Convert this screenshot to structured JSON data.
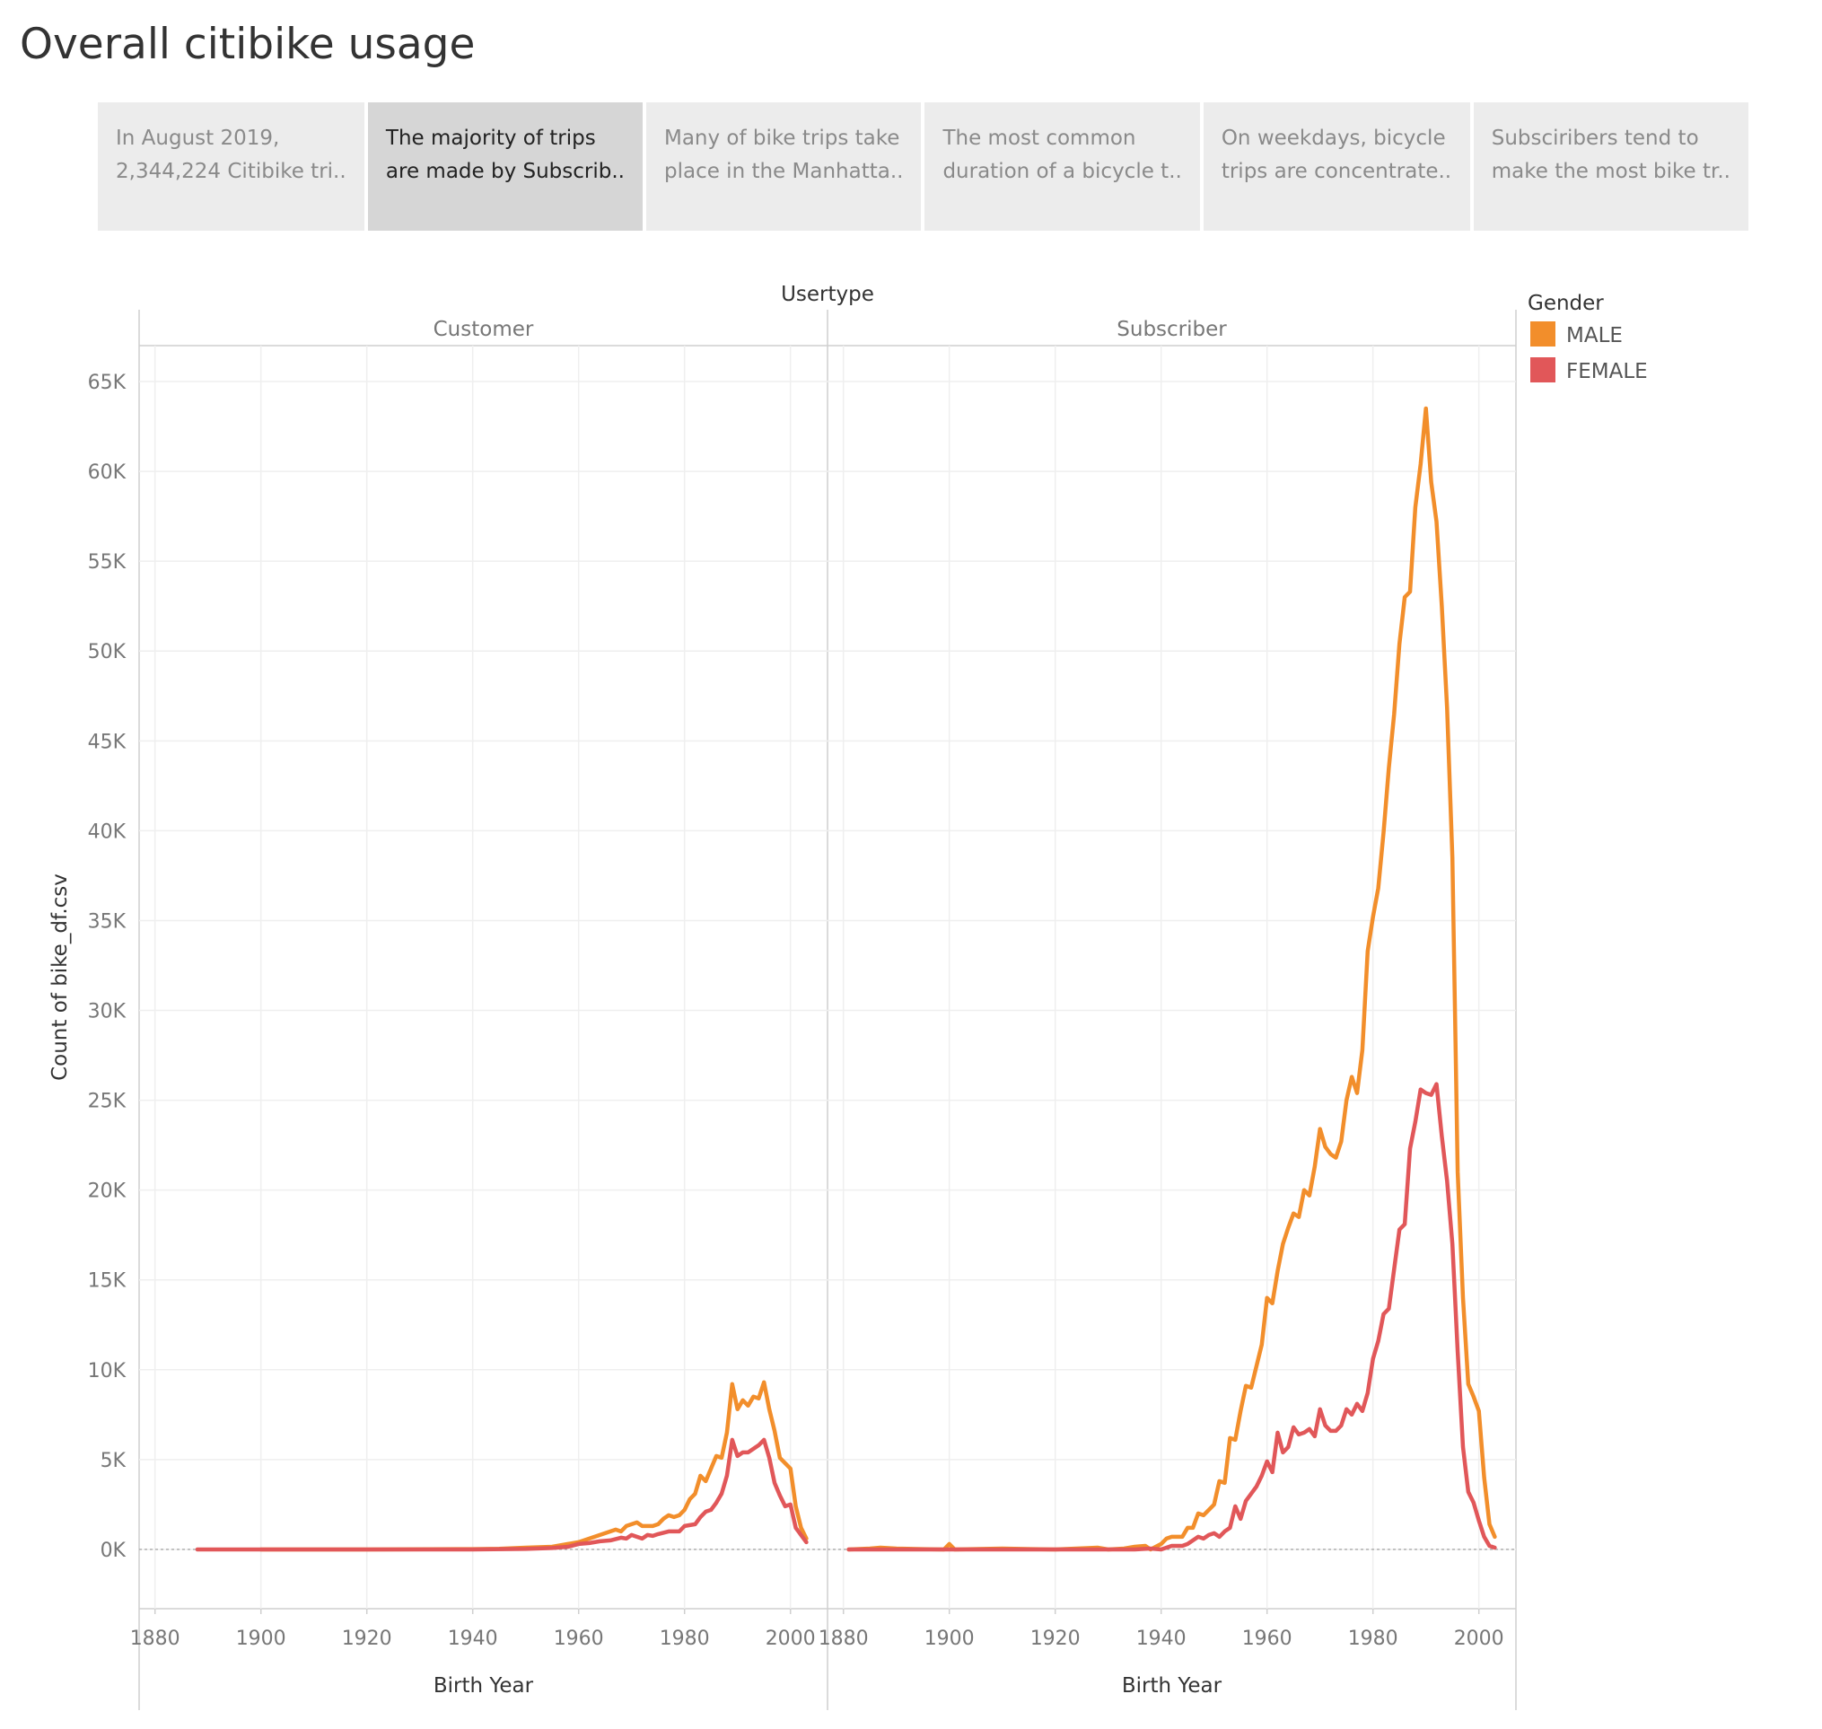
{
  "page": {
    "title": "Overall citibike usage"
  },
  "story_points": [
    {
      "line1": "In August 2019,",
      "line2": "2,344,224 Citibike tri..",
      "active": false
    },
    {
      "line1": "The majority of trips",
      "line2": "are made by Subscrib..",
      "active": true
    },
    {
      "line1": "Many of bike trips take",
      "line2": "place in the Manhatta..",
      "active": false
    },
    {
      "line1": "The most common",
      "line2": "duration of a bicycle t..",
      "active": false
    },
    {
      "line1": "On weekdays, bicycle",
      "line2": "trips are concentrate..",
      "active": false
    },
    {
      "line1": "Subsciribers tend to",
      "line2": "make the most bike tr..",
      "active": false
    }
  ],
  "chart_data": {
    "type": "line",
    "column_header_title": "Usertype",
    "panels": [
      "Customer",
      "Subscriber"
    ],
    "xlabel": "Birth Year",
    "ylabel": "Count of bike_df.csv",
    "xlim": [
      1877,
      2007
    ],
    "ylim": [
      -3300,
      67000
    ],
    "x_ticks": [
      1880,
      1900,
      1920,
      1940,
      1960,
      1980,
      2000
    ],
    "y_ticks": [
      0,
      5000,
      10000,
      15000,
      20000,
      25000,
      30000,
      35000,
      40000,
      45000,
      50000,
      55000,
      60000,
      65000
    ],
    "y_tick_labels": [
      "0K",
      "5K",
      "10K",
      "15K",
      "20K",
      "25K",
      "30K",
      "35K",
      "40K",
      "45K",
      "50K",
      "55K",
      "60K",
      "65K"
    ],
    "grid": true,
    "legend": {
      "title": "Gender",
      "position": "top-right"
    },
    "series": [
      {
        "name": "MALE",
        "color": "#f28e2b",
        "panel": "Customer",
        "points": [
          [
            1900,
            0
          ],
          [
            1920,
            0
          ],
          [
            1940,
            20
          ],
          [
            1945,
            40
          ],
          [
            1950,
            100
          ],
          [
            1955,
            150
          ],
          [
            1958,
            300
          ],
          [
            1960,
            400
          ],
          [
            1963,
            700
          ],
          [
            1965,
            900
          ],
          [
            1967,
            1100
          ],
          [
            1968,
            1000
          ],
          [
            1969,
            1300
          ],
          [
            1971,
            1500
          ],
          [
            1972,
            1300
          ],
          [
            1974,
            1300
          ],
          [
            1975,
            1400
          ],
          [
            1976,
            1700
          ],
          [
            1977,
            1900
          ],
          [
            1978,
            1800
          ],
          [
            1979,
            1900
          ],
          [
            1980,
            2200
          ],
          [
            1981,
            2800
          ],
          [
            1982,
            3100
          ],
          [
            1983,
            4100
          ],
          [
            1984,
            3800
          ],
          [
            1985,
            4500
          ],
          [
            1986,
            5200
          ],
          [
            1987,
            5100
          ],
          [
            1988,
            6500
          ],
          [
            1989,
            9200
          ],
          [
            1990,
            7800
          ],
          [
            1991,
            8300
          ],
          [
            1992,
            8000
          ],
          [
            1993,
            8500
          ],
          [
            1994,
            8400
          ],
          [
            1995,
            9300
          ],
          [
            1996,
            7800
          ],
          [
            1997,
            6600
          ],
          [
            1998,
            5100
          ],
          [
            1999,
            4800
          ],
          [
            2000,
            4500
          ],
          [
            2001,
            2400
          ],
          [
            2002,
            1200
          ],
          [
            2003,
            600
          ]
        ]
      },
      {
        "name": "FEMALE",
        "color": "#e15759",
        "panel": "Customer",
        "points": [
          [
            1888,
            0
          ],
          [
            1900,
            0
          ],
          [
            1920,
            0
          ],
          [
            1940,
            0
          ],
          [
            1950,
            30
          ],
          [
            1955,
            80
          ],
          [
            1958,
            150
          ],
          [
            1960,
            300
          ],
          [
            1962,
            350
          ],
          [
            1964,
            450
          ],
          [
            1966,
            500
          ],
          [
            1968,
            650
          ],
          [
            1969,
            600
          ],
          [
            1970,
            800
          ],
          [
            1971,
            700
          ],
          [
            1972,
            600
          ],
          [
            1973,
            800
          ],
          [
            1974,
            750
          ],
          [
            1975,
            850
          ],
          [
            1977,
            1000
          ],
          [
            1979,
            1000
          ],
          [
            1980,
            1300
          ],
          [
            1982,
            1400
          ],
          [
            1983,
            1800
          ],
          [
            1984,
            2100
          ],
          [
            1985,
            2200
          ],
          [
            1986,
            2600
          ],
          [
            1987,
            3100
          ],
          [
            1988,
            4100
          ],
          [
            1989,
            6100
          ],
          [
            1990,
            5200
          ],
          [
            1991,
            5400
          ],
          [
            1992,
            5400
          ],
          [
            1993,
            5600
          ],
          [
            1994,
            5800
          ],
          [
            1995,
            6100
          ],
          [
            1996,
            5100
          ],
          [
            1997,
            3700
          ],
          [
            1998,
            3000
          ],
          [
            1999,
            2400
          ],
          [
            2000,
            2500
          ],
          [
            2001,
            1200
          ],
          [
            2002,
            800
          ],
          [
            2003,
            400
          ]
        ]
      },
      {
        "name": "MALE",
        "color": "#f28e2b",
        "panel": "Subscriber",
        "points": [
          [
            1881,
            0
          ],
          [
            1885,
            50
          ],
          [
            1887,
            100
          ],
          [
            1890,
            50
          ],
          [
            1895,
            20
          ],
          [
            1899,
            0
          ],
          [
            1900,
            300
          ],
          [
            1901,
            0
          ],
          [
            1910,
            50
          ],
          [
            1920,
            0
          ],
          [
            1928,
            100
          ],
          [
            1930,
            0
          ],
          [
            1933,
            50
          ],
          [
            1935,
            150
          ],
          [
            1937,
            200
          ],
          [
            1938,
            0
          ],
          [
            1940,
            300
          ],
          [
            1941,
            600
          ],
          [
            1942,
            700
          ],
          [
            1944,
            700
          ],
          [
            1945,
            1200
          ],
          [
            1946,
            1200
          ],
          [
            1947,
            2000
          ],
          [
            1948,
            1900
          ],
          [
            1949,
            2200
          ],
          [
            1950,
            2500
          ],
          [
            1951,
            3800
          ],
          [
            1952,
            3700
          ],
          [
            1953,
            6200
          ],
          [
            1954,
            6100
          ],
          [
            1955,
            7700
          ],
          [
            1956,
            9100
          ],
          [
            1957,
            9000
          ],
          [
            1958,
            10200
          ],
          [
            1959,
            11400
          ],
          [
            1960,
            14000
          ],
          [
            1961,
            13700
          ],
          [
            1962,
            15500
          ],
          [
            1963,
            17000
          ],
          [
            1964,
            17900
          ],
          [
            1965,
            18700
          ],
          [
            1966,
            18500
          ],
          [
            1967,
            20000
          ],
          [
            1968,
            19700
          ],
          [
            1969,
            21300
          ],
          [
            1970,
            23400
          ],
          [
            1971,
            22400
          ],
          [
            1972,
            22000
          ],
          [
            1973,
            21800
          ],
          [
            1974,
            22700
          ],
          [
            1975,
            25000
          ],
          [
            1976,
            26300
          ],
          [
            1977,
            25400
          ],
          [
            1978,
            27800
          ],
          [
            1979,
            33300
          ],
          [
            1980,
            35200
          ],
          [
            1981,
            36800
          ],
          [
            1982,
            39900
          ],
          [
            1983,
            43500
          ],
          [
            1984,
            46500
          ],
          [
            1985,
            50400
          ],
          [
            1986,
            53000
          ],
          [
            1987,
            53300
          ],
          [
            1988,
            58000
          ],
          [
            1989,
            60400
          ],
          [
            1990,
            63500
          ],
          [
            1991,
            59400
          ],
          [
            1992,
            57200
          ],
          [
            1993,
            52500
          ],
          [
            1994,
            46800
          ],
          [
            1995,
            38500
          ],
          [
            1996,
            21000
          ],
          [
            1997,
            14000
          ],
          [
            1998,
            9200
          ],
          [
            1999,
            8500
          ],
          [
            2000,
            7700
          ],
          [
            2001,
            4000
          ],
          [
            2002,
            1400
          ],
          [
            2003,
            700
          ]
        ]
      },
      {
        "name": "FEMALE",
        "color": "#e15759",
        "panel": "Subscriber",
        "points": [
          [
            1881,
            0
          ],
          [
            1900,
            0
          ],
          [
            1920,
            0
          ],
          [
            1935,
            0
          ],
          [
            1938,
            50
          ],
          [
            1940,
            0
          ],
          [
            1942,
            200
          ],
          [
            1944,
            200
          ],
          [
            1945,
            300
          ],
          [
            1946,
            500
          ],
          [
            1947,
            700
          ],
          [
            1948,
            600
          ],
          [
            1949,
            800
          ],
          [
            1950,
            900
          ],
          [
            1951,
            700
          ],
          [
            1952,
            1000
          ],
          [
            1953,
            1200
          ],
          [
            1954,
            2400
          ],
          [
            1955,
            1700
          ],
          [
            1956,
            2700
          ],
          [
            1957,
            3100
          ],
          [
            1958,
            3500
          ],
          [
            1959,
            4100
          ],
          [
            1960,
            4900
          ],
          [
            1961,
            4300
          ],
          [
            1962,
            6500
          ],
          [
            1963,
            5400
          ],
          [
            1964,
            5700
          ],
          [
            1965,
            6800
          ],
          [
            1966,
            6400
          ],
          [
            1967,
            6500
          ],
          [
            1968,
            6700
          ],
          [
            1969,
            6300
          ],
          [
            1970,
            7800
          ],
          [
            1971,
            6900
          ],
          [
            1972,
            6600
          ],
          [
            1973,
            6600
          ],
          [
            1974,
            6900
          ],
          [
            1975,
            7800
          ],
          [
            1976,
            7500
          ],
          [
            1977,
            8100
          ],
          [
            1978,
            7700
          ],
          [
            1979,
            8700
          ],
          [
            1980,
            10600
          ],
          [
            1981,
            11600
          ],
          [
            1982,
            13100
          ],
          [
            1983,
            13400
          ],
          [
            1984,
            15600
          ],
          [
            1985,
            17800
          ],
          [
            1986,
            18100
          ],
          [
            1987,
            22300
          ],
          [
            1988,
            23800
          ],
          [
            1989,
            25600
          ],
          [
            1990,
            25400
          ],
          [
            1991,
            25300
          ],
          [
            1992,
            25900
          ],
          [
            1993,
            23000
          ],
          [
            1994,
            20500
          ],
          [
            1995,
            17000
          ],
          [
            1996,
            11000
          ],
          [
            1997,
            5700
          ],
          [
            1998,
            3200
          ],
          [
            1999,
            2600
          ],
          [
            2000,
            1600
          ],
          [
            2001,
            700
          ],
          [
            2002,
            200
          ],
          [
            2003,
            100
          ]
        ]
      }
    ]
  }
}
